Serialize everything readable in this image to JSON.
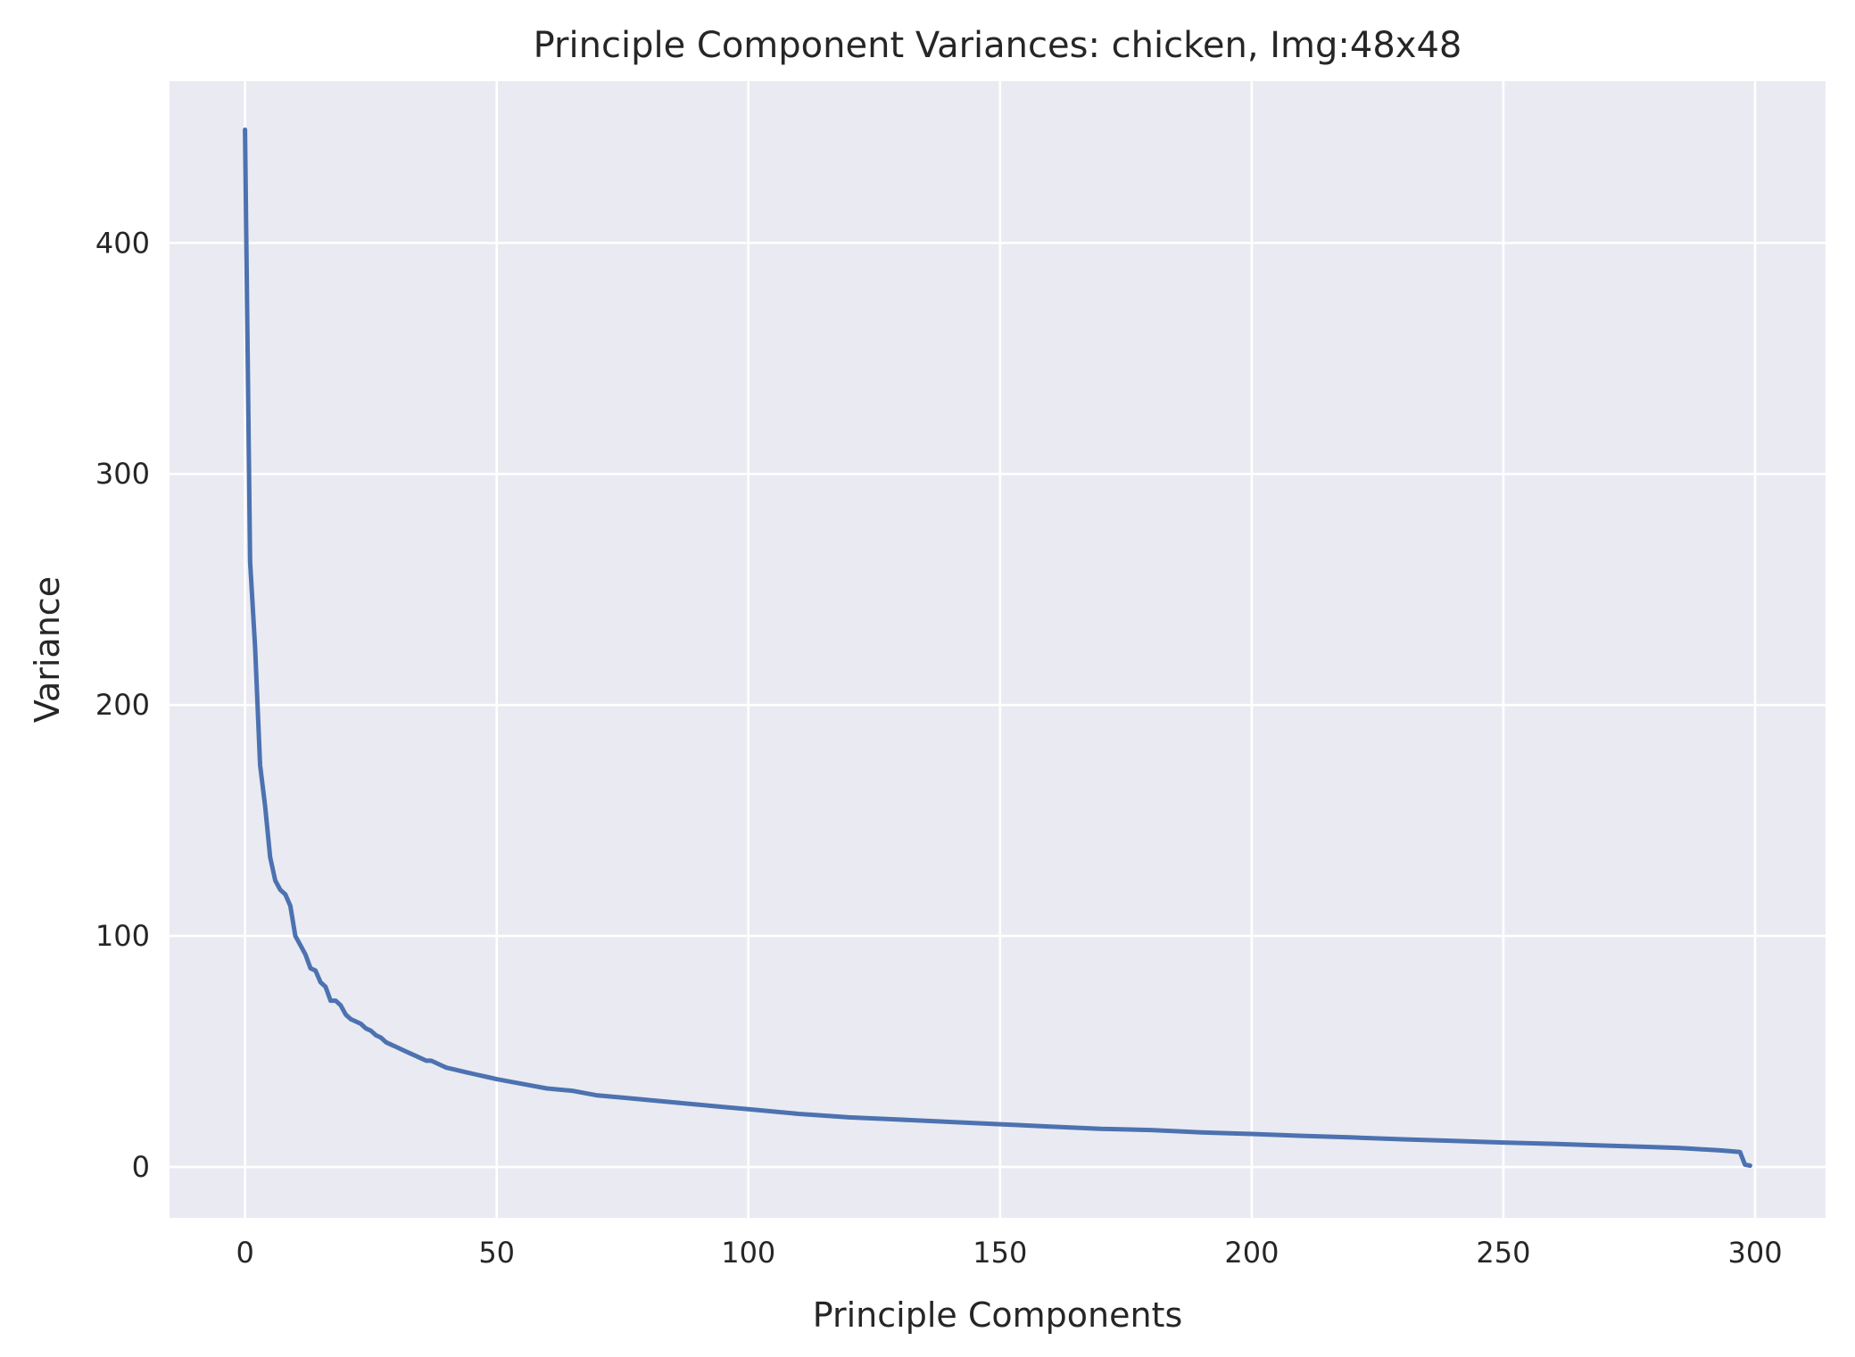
{
  "chart_data": {
    "type": "line",
    "title": "Principle Component Variances: chicken, Img:48x48",
    "xlabel": "Principle Components",
    "ylabel": "Variance",
    "xlim": [
      -15,
      314
    ],
    "ylim": [
      -22,
      470
    ],
    "xticks": [
      0,
      50,
      100,
      150,
      200,
      250,
      300
    ],
    "yticks": [
      0,
      100,
      200,
      300,
      400
    ],
    "grid": true,
    "background": "#eaeaf2",
    "grid_color": "#ffffff",
    "line_color": "#4c72b0",
    "series": [
      {
        "x": [
          0,
          1,
          2,
          3,
          4,
          5,
          6,
          7,
          8,
          9,
          10,
          11,
          12,
          13,
          14,
          15,
          16,
          17,
          18,
          19,
          20,
          21,
          22,
          23,
          24,
          25,
          26,
          27,
          28,
          29,
          30,
          31,
          32,
          33,
          34,
          35,
          36,
          37,
          38,
          39,
          40,
          42,
          44,
          46,
          48,
          50,
          55,
          60,
          65,
          70,
          75,
          80,
          85,
          90,
          95,
          100,
          110,
          120,
          130,
          140,
          150,
          160,
          170,
          180,
          190,
          200,
          210,
          220,
          230,
          240,
          250,
          260,
          270,
          280,
          285,
          290,
          293,
          295,
          297,
          298,
          299
        ],
        "y": [
          449,
          262,
          225,
          174,
          156,
          134,
          124,
          120,
          118,
          113,
          100,
          96,
          92,
          86,
          85,
          80,
          78,
          72,
          72,
          70,
          66,
          64,
          63,
          62,
          60,
          59,
          57,
          56,
          54,
          53,
          52,
          51,
          50,
          49,
          48,
          47,
          46,
          46,
          45,
          44,
          43,
          42,
          41,
          40,
          39,
          38,
          36,
          34,
          33,
          31,
          30,
          29,
          28,
          27,
          26,
          25,
          23,
          21.5,
          20.5,
          19.5,
          18.5,
          17.5,
          16.5,
          16,
          15,
          14.3,
          13.5,
          12.8,
          12,
          11.3,
          10.6,
          10,
          9.3,
          8.6,
          8.2,
          7.6,
          7.2,
          6.9,
          6.5,
          1,
          0.6
        ]
      }
    ]
  }
}
